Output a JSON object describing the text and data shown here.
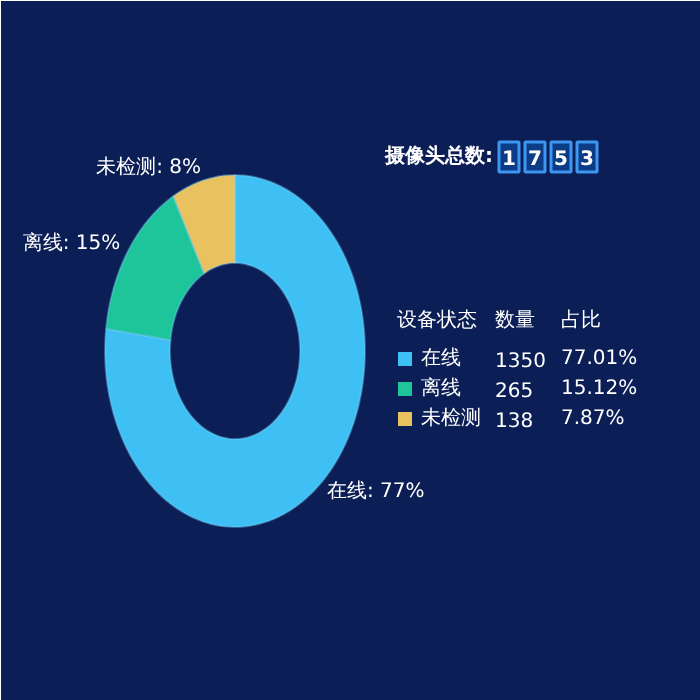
{
  "chart_data": {
    "type": "donut",
    "categories": [
      "在线",
      "离线",
      "未检测"
    ],
    "values": [
      77.01,
      15.12,
      7.87
    ],
    "colors": [
      "#3fc0f4",
      "#1ec49a",
      "#e9c15f"
    ],
    "value_labels": [
      "在线: 77%",
      "离线: 15%",
      "未检测: 8%"
    ],
    "legend": "right",
    "legend_title": "设备状态",
    "annotations": [
      "摄像头总数:",
      "1",
      "7",
      "5",
      "3",
      "数量",
      "占比",
      "1350",
      "265",
      "138",
      "77.01%",
      "15.12%",
      "7.87%"
    ]
  }
}
